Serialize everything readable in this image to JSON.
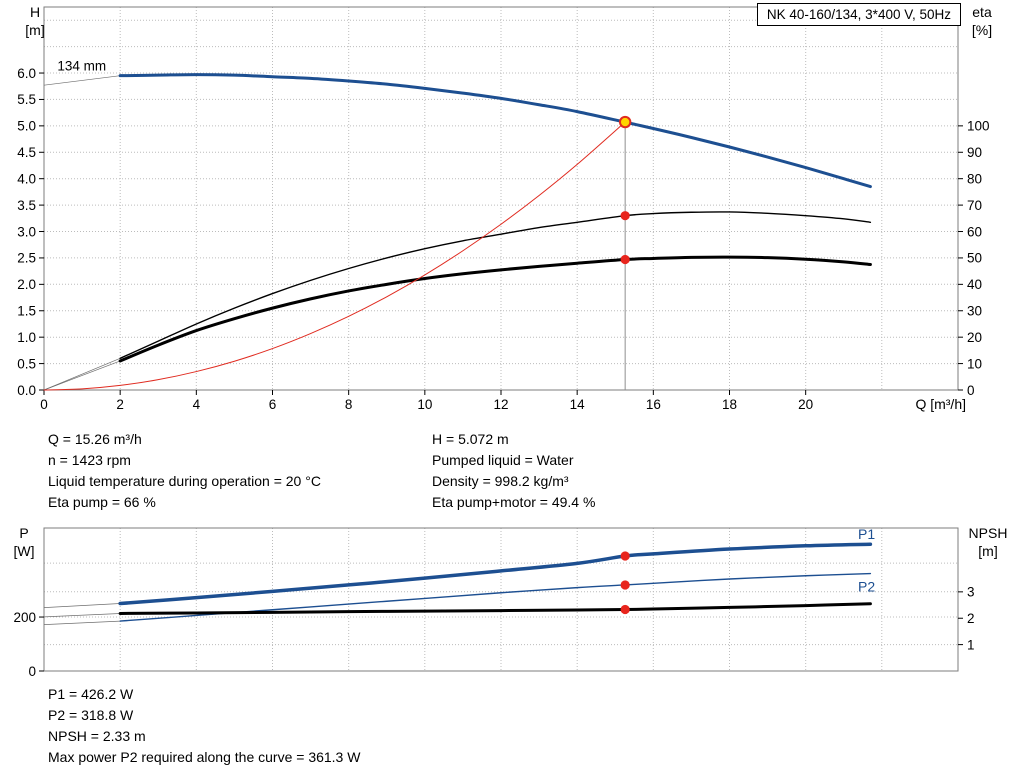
{
  "colors": {
    "blue": "#1d4f91",
    "black": "#000000",
    "red": "#e02b20",
    "marker": "#e8251d",
    "duty_fill": "#ffd500",
    "grid": "#bcbcbc",
    "border": "#7d7d7d"
  },
  "top_info": {
    "left": [
      "Q = 15.26 m³/h",
      "n = 1423 rpm",
      "Liquid temperature during operation = 20 °C",
      "Eta pump = 66 %"
    ],
    "right": [
      "H = 5.072 m",
      "Pumped liquid = Water",
      "Density = 998.2 kg/m³",
      "Eta pump+motor = 49.4 %"
    ]
  },
  "bottom_info": [
    "P1 = 426.2 W",
    "P2 = 318.8 W",
    "NPSH = 2.33 m",
    "Max power P2 required along the curve = 361.3 W"
  ],
  "chart_data": [
    {
      "id": "qh-eta",
      "type": "line",
      "title_box": "NK 40-160/134, 3*400 V, 50Hz",
      "xlabel": "Q [m³/h]",
      "xlim": [
        0,
        24
      ],
      "x_ticks": {
        "values": [
          0,
          2,
          4,
          6,
          8,
          10,
          12,
          14,
          16,
          18,
          20
        ],
        "labels": [
          "0",
          "2",
          "4",
          "6",
          "8",
          "10",
          "12",
          "14",
          "16",
          "18",
          "20"
        ]
      },
      "x_grid": [
        2,
        4,
        6,
        8,
        10,
        12,
        14,
        16,
        18,
        20,
        22
      ],
      "h_grid": [
        {
          "axis": "left",
          "values": [
            0.5,
            1,
            1.5,
            2,
            2.5,
            3,
            3.5,
            4,
            4.5,
            5,
            5.5,
            6,
            6.5,
            7
          ]
        }
      ],
      "left_axis": {
        "title": [
          "H",
          "[m]"
        ],
        "lim": [
          0,
          7.25
        ],
        "ticks": {
          "values": [
            0,
            0.5,
            1,
            1.5,
            2,
            2.5,
            3,
            3.5,
            4,
            4.5,
            5,
            5.5,
            6
          ],
          "labels": [
            "0.0",
            "0.5",
            "1.0",
            "1.5",
            "2.0",
            "2.5",
            "3.0",
            "3.5",
            "4.0",
            "4.5",
            "5.0",
            "5.5",
            "6.0"
          ]
        }
      },
      "right_axis": {
        "title": [
          "eta",
          "[%]"
        ],
        "lim": [
          0,
          145
        ],
        "ticks": {
          "values": [
            0,
            10,
            20,
            30,
            40,
            50,
            60,
            70,
            80,
            90,
            100
          ],
          "labels": [
            "0",
            "10",
            "20",
            "30",
            "40",
            "50",
            "60",
            "70",
            "80",
            "90",
            "100"
          ]
        }
      },
      "curve_label": {
        "text": "134 mm",
        "x": 0.35,
        "y": 6.05
      },
      "connectors": [
        {
          "x1": 0,
          "y1": 5.77,
          "x2": 2,
          "y2": 5.95,
          "axis": "left"
        },
        {
          "x1": 0,
          "y1": 0,
          "x2": 2,
          "y2": 12,
          "axis": "right"
        },
        {
          "x1": 0,
          "y1": 0,
          "x2": 2,
          "y2": 11,
          "axis": "right"
        }
      ],
      "series": [
        {
          "name": "head-curve-134mm",
          "axis": "left",
          "color": "#1d4f91",
          "width": 3,
          "x": [
            2,
            3,
            4,
            5,
            6,
            7,
            8,
            9,
            10,
            11,
            12,
            13,
            14,
            15.26,
            16,
            17,
            18,
            19,
            20,
            21,
            21.7
          ],
          "y": [
            5.95,
            5.96,
            5.97,
            5.96,
            5.93,
            5.9,
            5.85,
            5.79,
            5.71,
            5.62,
            5.52,
            5.4,
            5.27,
            5.07,
            4.95,
            4.78,
            4.6,
            4.41,
            4.21,
            4.0,
            3.85
          ]
        },
        {
          "name": "eta-pump-curve",
          "axis": "right",
          "color": "#000000",
          "width": 1.4,
          "x": [
            2,
            3,
            4,
            5,
            6,
            7,
            8,
            9,
            10,
            11,
            12,
            13,
            14,
            15.26,
            16,
            17,
            18,
            19,
            20,
            21,
            21.7
          ],
          "y": [
            12,
            18.5,
            25,
            31,
            36.5,
            41.5,
            46,
            50,
            53.5,
            56.5,
            59,
            61.5,
            63.5,
            66,
            66.8,
            67.3,
            67.4,
            66.9,
            66,
            64.8,
            63.5
          ]
        },
        {
          "name": "eta-pump-motor-curve",
          "axis": "right",
          "color": "#000000",
          "width": 3,
          "x": [
            2,
            3,
            4,
            5,
            6,
            7,
            8,
            9,
            10,
            11,
            12,
            13,
            14,
            15.26,
            16,
            17,
            18,
            19,
            20,
            21,
            21.7
          ],
          "y": [
            11,
            17,
            22.5,
            27,
            31,
            34.5,
            37.5,
            40,
            42.2,
            44,
            45.5,
            46.8,
            48,
            49.4,
            49.8,
            50.2,
            50.3,
            50.1,
            49.5,
            48.5,
            47.5
          ]
        },
        {
          "name": "system-curve",
          "axis": "left",
          "color": "#e02b20",
          "width": 1,
          "x": [
            0,
            1,
            2,
            3,
            4,
            5,
            6,
            7,
            8,
            9,
            10,
            11,
            12,
            13,
            14,
            15.26
          ],
          "y": [
            0,
            0.022,
            0.087,
            0.196,
            0.349,
            0.545,
            0.784,
            1.068,
            1.394,
            1.765,
            2.178,
            2.636,
            3.137,
            3.681,
            4.27,
            5.072
          ]
        }
      ],
      "duty_line_x": 15.26,
      "duty_point": {
        "x": 15.26,
        "y": 5.072
      },
      "markers": [
        {
          "x": 15.26,
          "y": 66,
          "axis": "right"
        },
        {
          "x": 15.26,
          "y": 49.4,
          "axis": "right"
        }
      ]
    },
    {
      "id": "power-npsh",
      "type": "line",
      "xlim": [
        0,
        24
      ],
      "x_ticks": {
        "values": [],
        "labels": []
      },
      "x_grid": [
        2,
        4,
        6,
        8,
        10,
        12,
        14,
        16,
        18,
        20,
        22
      ],
      "h_grid": [
        {
          "axis": "left",
          "values": [
            200,
            400
          ]
        },
        {
          "axis": "right",
          "values": [
            1,
            3
          ]
        }
      ],
      "left_axis": {
        "title": [
          "P",
          "[W]"
        ],
        "lim": [
          0,
          530
        ],
        "ticks": {
          "values": [
            0,
            200
          ],
          "labels": [
            "0",
            "200"
          ]
        }
      },
      "right_axis": {
        "title": [
          "NPSH",
          "[m]"
        ],
        "lim": [
          0,
          5.42
        ],
        "ticks": {
          "values": [
            1,
            2,
            3
          ],
          "labels": [
            "1",
            "2",
            "3"
          ]
        }
      },
      "connectors": [
        {
          "x1": 0,
          "y1": 235,
          "x2": 2,
          "y2": 250,
          "axis": "left"
        },
        {
          "x1": 0,
          "y1": 172,
          "x2": 2,
          "y2": 185,
          "axis": "left"
        },
        {
          "x1": 0,
          "y1": 2.05,
          "x2": 2,
          "y2": 2.18,
          "axis": "right"
        }
      ],
      "series": [
        {
          "name": "p1-curve",
          "label": "P1",
          "label_pos": {
            "x": 21.6,
            "y": 490
          },
          "axis": "left",
          "color": "#1d4f91",
          "width": 3.5,
          "x": [
            2,
            4,
            6,
            8,
            10,
            12,
            14,
            15.26,
            16,
            18,
            20,
            21.7
          ],
          "y": [
            250,
            272,
            295,
            319,
            344,
            371,
            399,
            426.2,
            434,
            452,
            464,
            470
          ]
        },
        {
          "name": "p2-curve",
          "label": "P2",
          "label_pos": {
            "x": 21.6,
            "y": 295
          },
          "axis": "left",
          "color": "#1d4f91",
          "width": 1.4,
          "x": [
            2,
            4,
            6,
            8,
            10,
            12,
            14,
            15.26,
            16,
            18,
            20,
            21.7
          ],
          "y": [
            185,
            206,
            227,
            248,
            269,
            290,
            309,
            318.8,
            325,
            341,
            353,
            361.3
          ]
        },
        {
          "name": "npsh-curve",
          "axis": "right",
          "color": "#000000",
          "width": 3,
          "x": [
            2,
            4,
            6,
            8,
            10,
            12,
            14,
            15.26,
            16,
            18,
            20,
            21.7
          ],
          "y": [
            2.18,
            2.2,
            2.22,
            2.25,
            2.27,
            2.29,
            2.31,
            2.33,
            2.35,
            2.41,
            2.48,
            2.55
          ]
        }
      ],
      "markers": [
        {
          "x": 15.26,
          "y": 426.2,
          "axis": "left"
        },
        {
          "x": 15.26,
          "y": 318.8,
          "axis": "left"
        },
        {
          "x": 15.26,
          "y": 2.33,
          "axis": "right"
        }
      ]
    }
  ]
}
